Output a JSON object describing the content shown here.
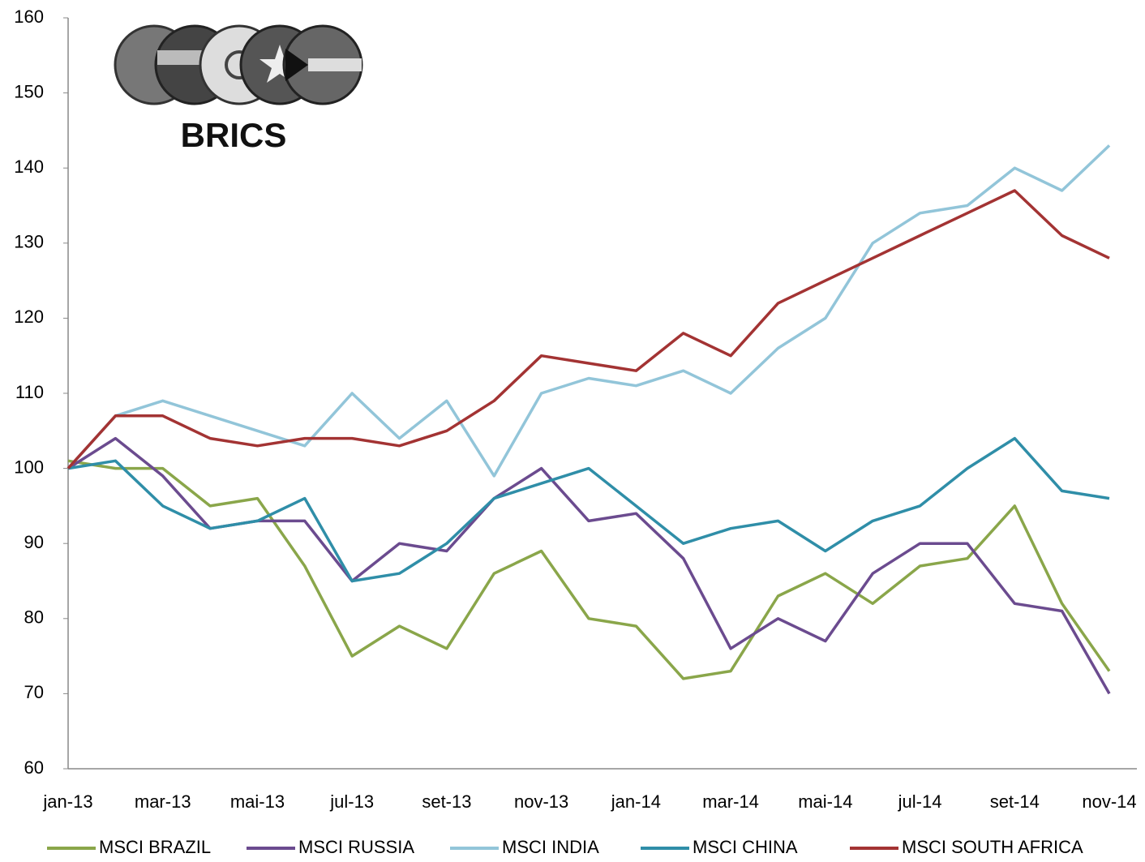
{
  "chart_data": {
    "type": "line",
    "logo_text": "BRICS",
    "categories": [
      "jan-13",
      null,
      "mar-13",
      null,
      "mai-13",
      null,
      "jul-13",
      null,
      "set-13",
      null,
      "nov-13",
      null,
      "jan-14",
      null,
      "mar-14",
      null,
      "mai-14",
      null,
      "jul-14",
      null,
      "set-14",
      null,
      "nov-14"
    ],
    "series": [
      {
        "name": "MSCI BRAZIL",
        "color": "#8aa64a",
        "values": [
          101,
          100,
          100,
          95,
          96,
          87,
          75,
          79,
          76,
          86,
          89,
          80,
          79,
          72,
          73,
          83,
          86,
          82,
          87,
          88,
          95,
          82,
          73
        ]
      },
      {
        "name": "MSCI RUSSIA",
        "color": "#6b4b8f",
        "values": [
          100,
          104,
          99,
          92,
          93,
          93,
          85,
          90,
          89,
          96,
          100,
          93,
          94,
          88,
          76,
          80,
          77,
          86,
          90,
          90,
          82,
          81,
          70
        ]
      },
      {
        "name": "MSCI INDIA",
        "color": "#92c5d9",
        "values": [
          100,
          107,
          109,
          107,
          105,
          103,
          110,
          104,
          109,
          99,
          110,
          112,
          111,
          113,
          110,
          116,
          120,
          130,
          134,
          135,
          140,
          137,
          143
        ]
      },
      {
        "name": "MSCI CHINA",
        "color": "#2f8ea8",
        "values": [
          100,
          101,
          95,
          92,
          93,
          96,
          85,
          86,
          90,
          96,
          98,
          100,
          95,
          90,
          92,
          93,
          89,
          93,
          95,
          100,
          104,
          97,
          96
        ]
      },
      {
        "name": "MSCI SOUTH AFRICA",
        "color": "#a33333",
        "values": [
          100,
          107,
          107,
          104,
          103,
          104,
          104,
          103,
          105,
          109,
          115,
          114,
          113,
          118,
          115,
          122,
          125,
          128,
          131,
          134,
          137,
          131,
          128
        ]
      }
    ],
    "ylim": [
      60,
      160
    ],
    "yticks": [
      60,
      70,
      80,
      90,
      100,
      110,
      120,
      130,
      140,
      150,
      160
    ],
    "grid": false
  }
}
